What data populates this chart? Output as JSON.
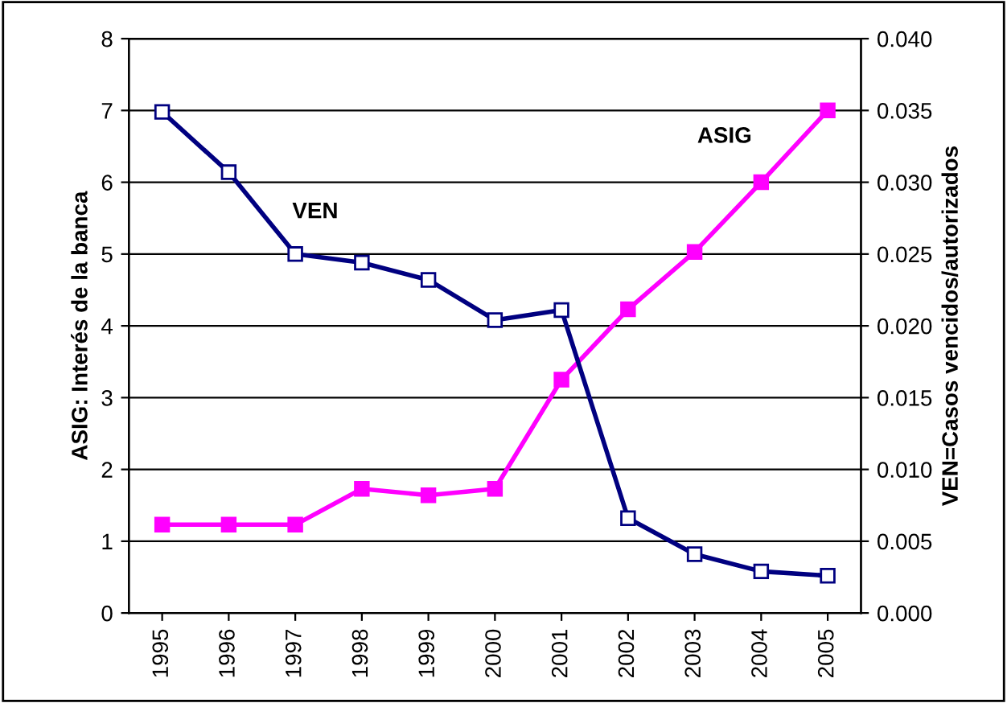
{
  "chart_data": {
    "type": "line",
    "categories": [
      "1995",
      "1996",
      "1997",
      "1998",
      "1999",
      "2000",
      "2001",
      "2002",
      "2003",
      "2004",
      "2005"
    ],
    "series": [
      {
        "name": "VEN",
        "color": "#000080",
        "axis": "y2",
        "marker": "square",
        "values": [
          0.0349,
          0.0307,
          0.025,
          0.0244,
          0.0232,
          0.0204,
          0.0211,
          0.0066,
          0.0041,
          0.0029,
          0.0026
        ]
      },
      {
        "name": "ASIG",
        "color": "#ff00ff",
        "values": [
          1.23,
          1.23,
          1.23,
          1.73,
          1.64,
          1.73,
          3.25,
          4.23,
          5.03,
          6.0,
          7.0
        ]
      }
    ],
    "ylabel": "ASIG: Interés de la banca",
    "y2label": "VEN=Casos vencidos/autorizados",
    "ylim": [
      0,
      8
    ],
    "yticks": [
      0,
      1,
      2,
      3,
      4,
      5,
      6,
      7,
      8
    ],
    "y2lim": [
      0,
      0.04
    ],
    "y2ticks": [
      {
        "value": 0,
        "label": "0.000"
      },
      {
        "value": 0.005,
        "label": "0.005"
      },
      {
        "value": 0.01,
        "label": "0.010"
      },
      {
        "value": 0.015,
        "label": "0.015"
      },
      {
        "value": 0.02,
        "label": "0.020"
      },
      {
        "value": 0.025,
        "label": "0.025"
      },
      {
        "value": 0.03,
        "label": "0.030"
      },
      {
        "value": 0.035,
        "label": "0.035"
      },
      {
        "value": 0.04,
        "label": "0.040"
      }
    ],
    "grid": "y",
    "marker": "square",
    "line_style": "solid",
    "legend": false
  }
}
